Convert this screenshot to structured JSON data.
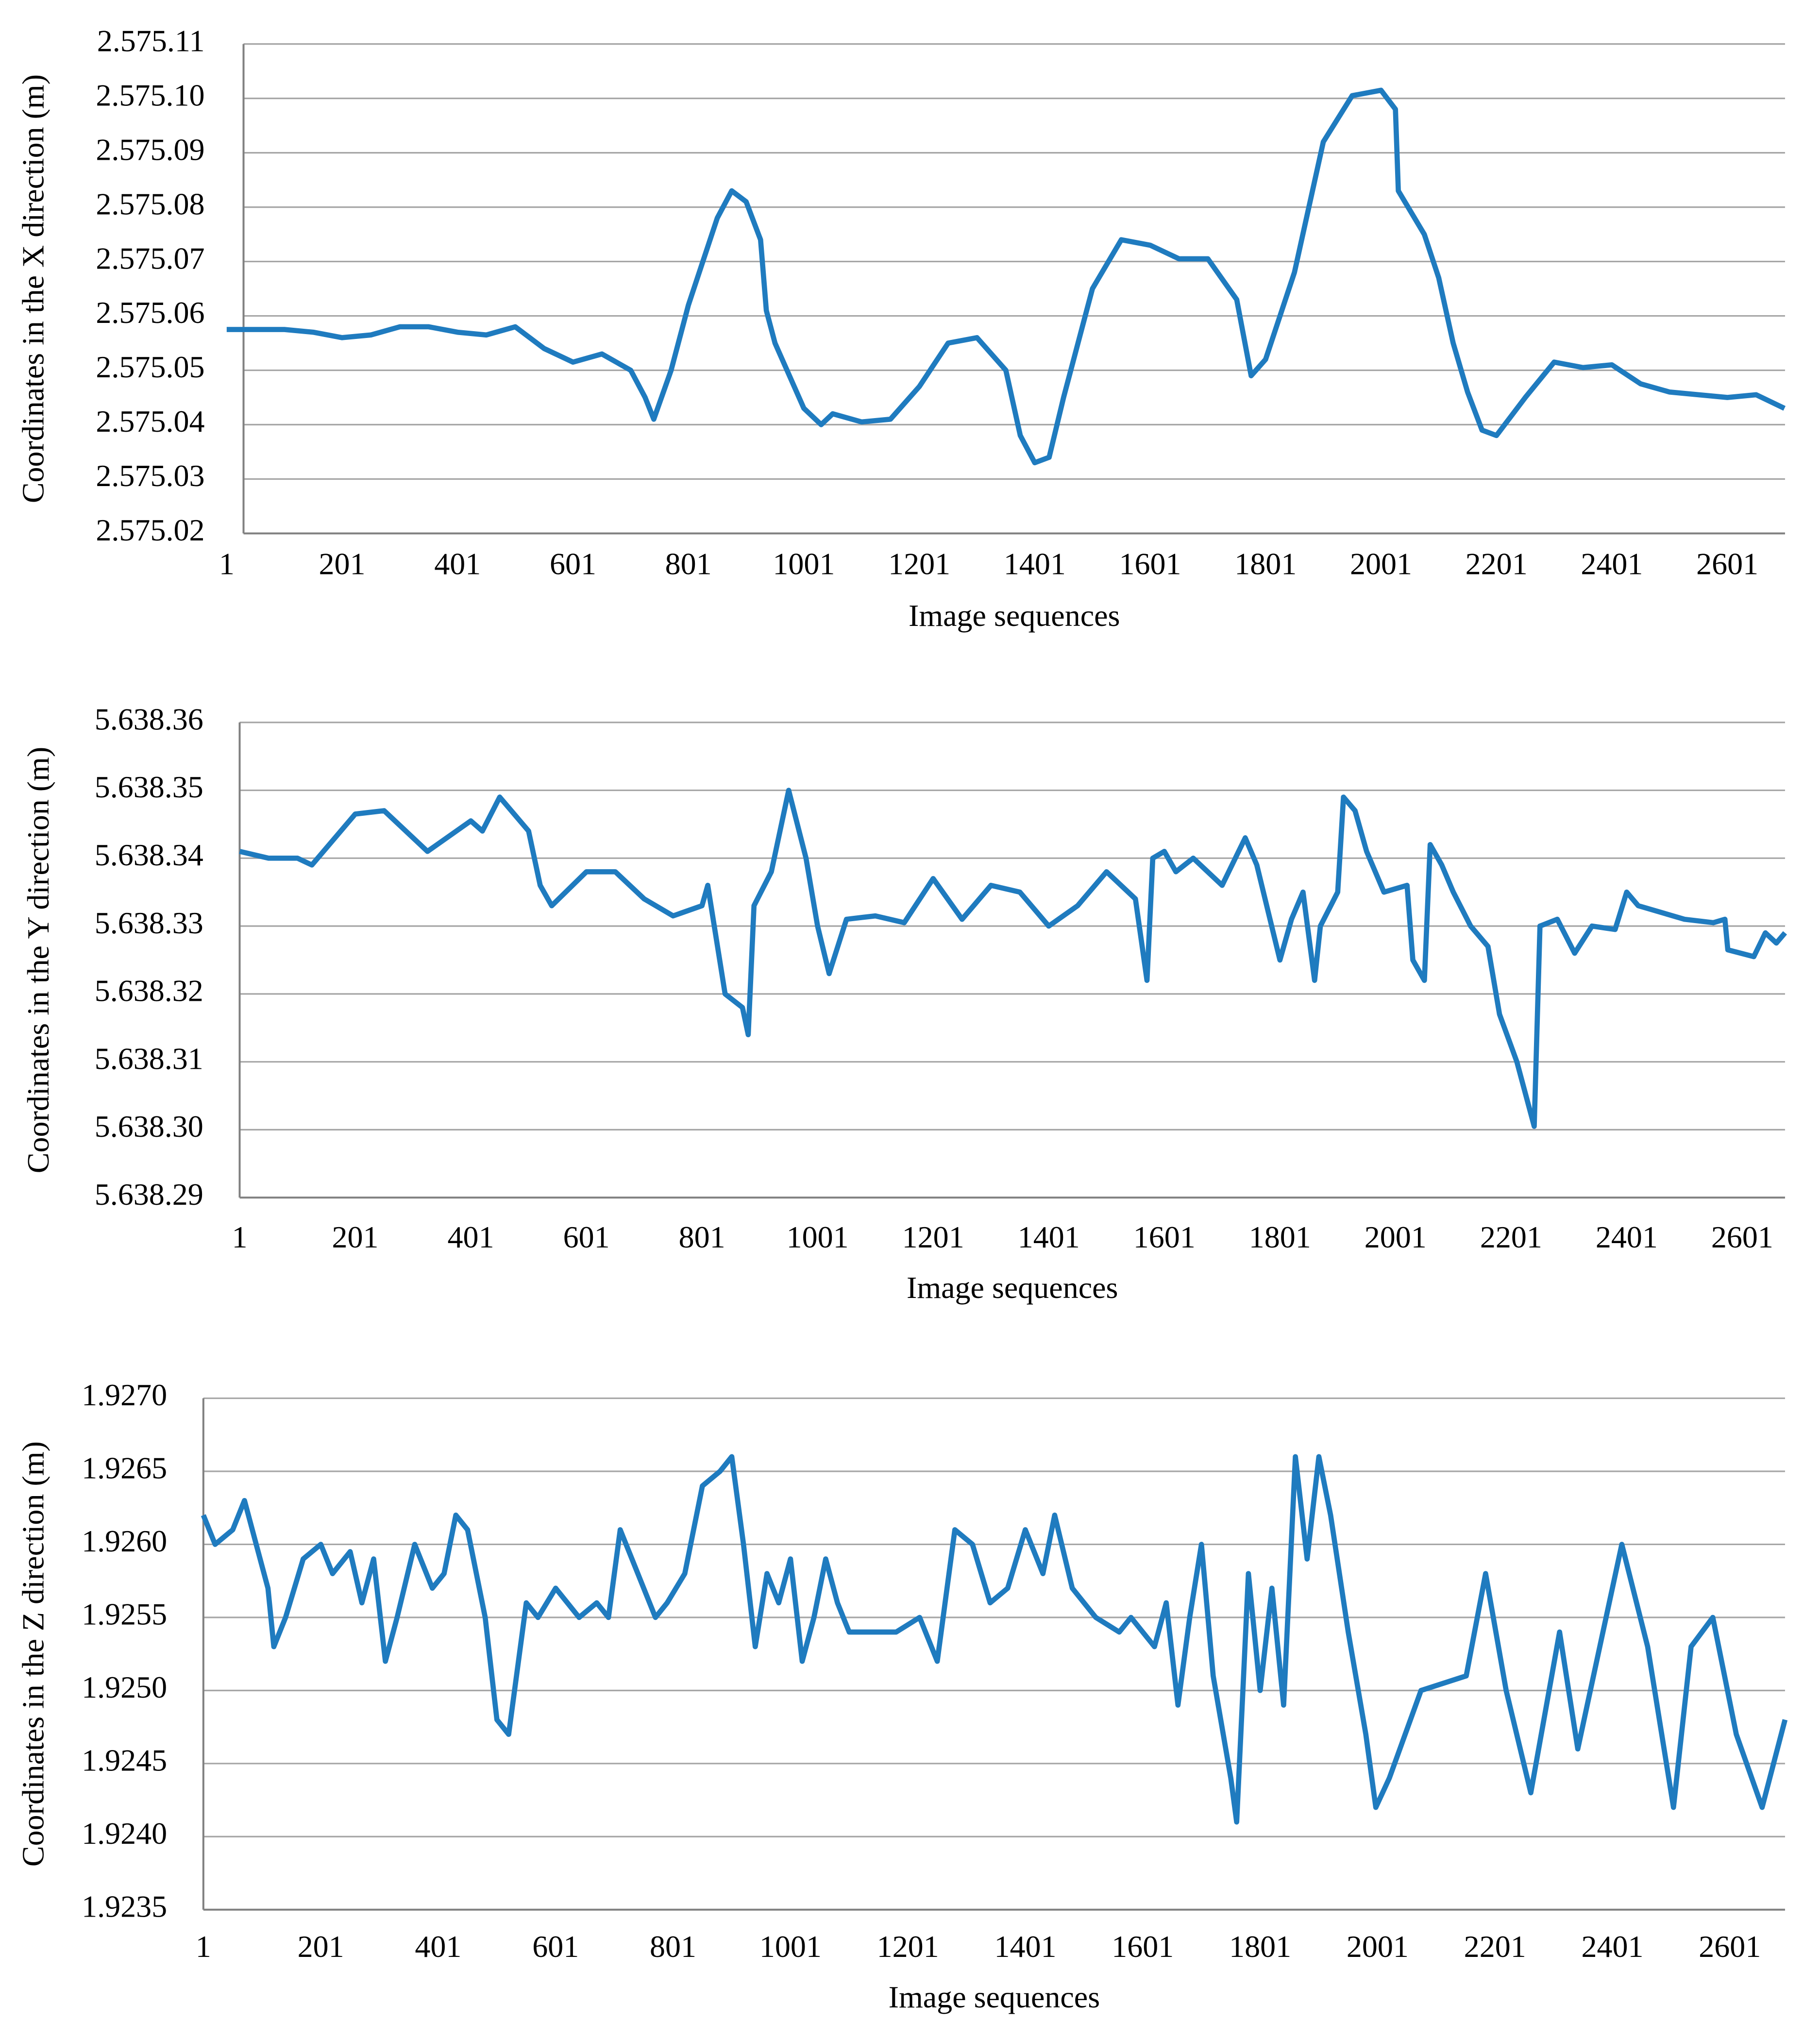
{
  "chart_data": [
    {
      "type": "line",
      "ylabel": "Coordinates in the X direction (m)",
      "xlabel": "Image sequences",
      "color": "#1f7bbf",
      "xlim": [
        1,
        2701
      ],
      "xticks": [
        1,
        201,
        401,
        601,
        801,
        1001,
        1201,
        1401,
        1601,
        1801,
        2001,
        2201,
        2401,
        2601
      ],
      "ylim": [
        2575.02,
        2575.11
      ],
      "yticks": [
        {
          "value": 2575.02,
          "label": "2.575.02"
        },
        {
          "value": 2575.03,
          "label": "2.575.03"
        },
        {
          "value": 2575.04,
          "label": "2.575.04"
        },
        {
          "value": 2575.05,
          "label": "2.575.05"
        },
        {
          "value": 2575.06,
          "label": "2.575.06"
        },
        {
          "value": 2575.07,
          "label": "2.575.07"
        },
        {
          "value": 2575.08,
          "label": "2.575.08"
        },
        {
          "value": 2575.09,
          "label": "2.575.09"
        },
        {
          "value": 2575.1,
          "label": "2.575.10"
        },
        {
          "value": 2575.11,
          "label": "2.575.11"
        }
      ],
      "grid": true,
      "x": [
        1,
        51,
        101,
        151,
        201,
        251,
        301,
        351,
        401,
        451,
        501,
        551,
        601,
        651,
        701,
        726,
        741,
        771,
        801,
        826,
        851,
        876,
        901,
        926,
        936,
        951,
        1001,
        1031,
        1051,
        1101,
        1151,
        1201,
        1251,
        1301,
        1351,
        1376,
        1401,
        1426,
        1451,
        1501,
        1551,
        1601,
        1651,
        1701,
        1751,
        1776,
        1801,
        1851,
        1901,
        1951,
        2001,
        2026,
        2031,
        2076,
        2101,
        2126,
        2151,
        2176,
        2201,
        2251,
        2301,
        2351,
        2401,
        2451,
        2501,
        2551,
        2601,
        2651,
        2700
      ],
      "values": [
        2575.0575,
        2575.0575,
        2575.0575,
        2575.057,
        2575.056,
        2575.0565,
        2575.058,
        2575.058,
        2575.057,
        2575.0565,
        2575.058,
        2575.054,
        2575.0515,
        2575.053,
        2575.05,
        2575.045,
        2575.041,
        2575.05,
        2575.062,
        2575.07,
        2575.078,
        2575.083,
        2575.081,
        2575.074,
        2575.061,
        2575.055,
        2575.043,
        2575.04,
        2575.042,
        2575.0405,
        2575.041,
        2575.047,
        2575.055,
        2575.056,
        2575.05,
        2575.038,
        2575.033,
        2575.034,
        2575.045,
        2575.065,
        2575.074,
        2575.073,
        2575.0705,
        2575.0705,
        2575.063,
        2575.049,
        2575.052,
        2575.068,
        2575.092,
        2575.1005,
        2575.1015,
        2575.098,
        2575.083,
        2575.075,
        2575.067,
        2575.055,
        2575.046,
        2575.039,
        2575.038,
        2575.045,
        2575.0515,
        2575.0505,
        2575.051,
        2575.0475,
        2575.046,
        2575.0455,
        2575.045,
        2575.0455,
        2575.043
      ]
    },
    {
      "type": "line",
      "ylabel": "Coordinates in the Y direction (m)",
      "xlabel": "Image sequences",
      "color": "#1f7bbf",
      "xlim": [
        1,
        2675
      ],
      "xticks": [
        1,
        201,
        401,
        601,
        801,
        1001,
        1201,
        1401,
        1601,
        1801,
        2001,
        2201,
        2401,
        2601
      ],
      "ylim": [
        5638.29,
        5638.36
      ],
      "yticks": [
        {
          "value": 5638.29,
          "label": "5.638.29"
        },
        {
          "value": 5638.3,
          "label": "5.638.30"
        },
        {
          "value": 5638.31,
          "label": "5.638.31"
        },
        {
          "value": 5638.32,
          "label": "5.638.32"
        },
        {
          "value": 5638.33,
          "label": "5.638.33"
        },
        {
          "value": 5638.34,
          "label": "5.638.34"
        },
        {
          "value": 5638.35,
          "label": "5.638.35"
        },
        {
          "value": 5638.36,
          "label": "5.638.36"
        }
      ],
      "grid": true,
      "x": [
        1,
        51,
        101,
        126,
        201,
        251,
        301,
        326,
        401,
        421,
        451,
        501,
        521,
        541,
        601,
        651,
        701,
        751,
        801,
        811,
        841,
        871,
        881,
        891,
        921,
        951,
        981,
        1001,
        1021,
        1051,
        1101,
        1151,
        1201,
        1251,
        1301,
        1351,
        1401,
        1451,
        1501,
        1551,
        1571,
        1581,
        1601,
        1621,
        1651,
        1701,
        1741,
        1761,
        1801,
        1821,
        1841,
        1861,
        1871,
        1901,
        1911,
        1931,
        1951,
        1981,
        2021,
        2031,
        2051,
        2061,
        2081,
        2101,
        2131,
        2161,
        2181,
        2211,
        2241,
        2251,
        2281,
        2311,
        2341,
        2381,
        2401,
        2421,
        2501,
        2551,
        2571,
        2576,
        2621,
        2641,
        2660,
        2675
      ],
      "values": [
        5638.341,
        5638.34,
        5638.34,
        5638.339,
        5638.3465,
        5638.347,
        5638.343,
        5638.341,
        5638.3455,
        5638.344,
        5638.349,
        5638.344,
        5638.336,
        5638.333,
        5638.338,
        5638.338,
        5638.334,
        5638.3315,
        5638.333,
        5638.336,
        5638.32,
        5638.318,
        5638.314,
        5638.333,
        5638.338,
        5638.35,
        5638.34,
        5638.33,
        5638.323,
        5638.331,
        5638.3315,
        5638.3305,
        5638.337,
        5638.331,
        5638.336,
        5638.335,
        5638.33,
        5638.333,
        5638.338,
        5638.334,
        5638.322,
        5638.34,
        5638.341,
        5638.338,
        5638.34,
        5638.336,
        5638.343,
        5638.339,
        5638.325,
        5638.331,
        5638.335,
        5638.322,
        5638.33,
        5638.335,
        5638.349,
        5638.347,
        5638.341,
        5638.335,
        5638.336,
        5638.325,
        5638.322,
        5638.342,
        5638.339,
        5638.335,
        5638.33,
        5638.327,
        5638.317,
        5638.31,
        5638.3005,
        5638.33,
        5638.331,
        5638.326,
        5638.33,
        5638.3295,
        5638.335,
        5638.333,
        5638.331,
        5638.3305,
        5638.331,
        5638.3265,
        5638.3255,
        5638.329,
        5638.3275,
        5638.329
      ]
    },
    {
      "type": "line",
      "ylabel": "Coordinates in the Z direction (m)",
      "xlabel": "Image sequences",
      "color": "#1f7bbf",
      "xlim": [
        1,
        2695
      ],
      "xticks": [
        1,
        201,
        401,
        601,
        801,
        1001,
        1201,
        1401,
        1601,
        1801,
        2001,
        2201,
        2401,
        2601
      ],
      "ylim": [
        1.9235,
        1.927
      ],
      "yticks": [
        1.9235,
        {
          "value": 1.924,
          "label": "1.9240"
        },
        1.9245,
        {
          "value": 1.925,
          "label": "1.9250"
        },
        1.9255,
        {
          "value": 1.926,
          "label": "1.9260"
        },
        1.9265,
        {
          "value": 1.927,
          "label": "1.9270"
        }
      ],
      "grid": true,
      "x": [
        1,
        21,
        51,
        71,
        91,
        111,
        121,
        141,
        171,
        201,
        221,
        251,
        271,
        291,
        311,
        331,
        361,
        391,
        411,
        431,
        451,
        481,
        501,
        521,
        551,
        571,
        601,
        641,
        671,
        691,
        711,
        741,
        771,
        791,
        821,
        851,
        881,
        901,
        921,
        941,
        961,
        981,
        1001,
        1021,
        1041,
        1061,
        1081,
        1101,
        1141,
        1181,
        1221,
        1251,
        1281,
        1311,
        1341,
        1371,
        1401,
        1431,
        1451,
        1481,
        1521,
        1561,
        1581,
        1621,
        1641,
        1661,
        1681,
        1701,
        1721,
        1751,
        1761,
        1781,
        1801,
        1821,
        1841,
        1861,
        1881,
        1901,
        1921,
        1951,
        1981,
        1998,
        2021,
        2075,
        2152,
        2185,
        2220,
        2262,
        2311,
        2342,
        2417,
        2461,
        2505,
        2535,
        2572,
        2612,
        2656,
        2695
      ],
      "values": [
        1.9262,
        1.926,
        1.9261,
        1.9263,
        1.926,
        1.9257,
        1.9253,
        1.9255,
        1.9259,
        1.926,
        1.9258,
        1.92595,
        1.9256,
        1.9259,
        1.9252,
        1.9255,
        1.926,
        1.9257,
        1.9258,
        1.9262,
        1.9261,
        1.9255,
        1.9248,
        1.9247,
        1.9256,
        1.9255,
        1.9257,
        1.9255,
        1.9256,
        1.9255,
        1.9261,
        1.9258,
        1.9255,
        1.9256,
        1.9258,
        1.9264,
        1.9265,
        1.9266,
        1.926,
        1.9253,
        1.9258,
        1.9256,
        1.9259,
        1.9252,
        1.9255,
        1.9259,
        1.9256,
        1.9254,
        1.9254,
        1.9254,
        1.9255,
        1.9252,
        1.9261,
        1.926,
        1.9256,
        1.9257,
        1.9261,
        1.9258,
        1.9262,
        1.9257,
        1.9255,
        1.9254,
        1.9255,
        1.9253,
        1.9256,
        1.9249,
        1.9255,
        1.926,
        1.9251,
        1.9244,
        1.9241,
        1.9258,
        1.925,
        1.9257,
        1.9249,
        1.9266,
        1.9259,
        1.9266,
        1.9262,
        1.9254,
        1.9247,
        1.9242,
        1.9244,
        1.925,
        1.9251,
        1.9258,
        1.925,
        1.9243,
        1.9254,
        1.9246,
        1.926,
        1.9253,
        1.9242,
        1.9253,
        1.9255,
        1.9247,
        1.9242,
        1.9248
      ]
    }
  ]
}
